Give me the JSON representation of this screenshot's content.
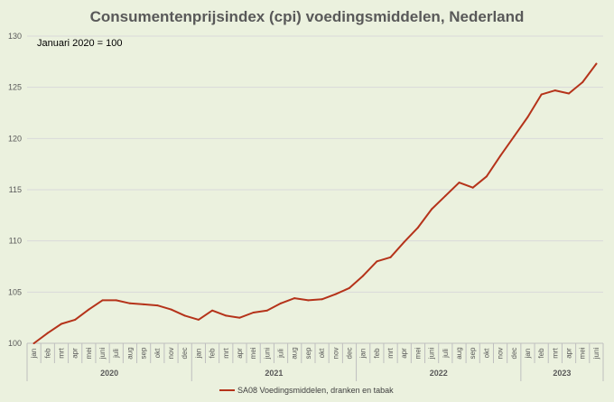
{
  "chart_data": {
    "type": "line",
    "title": "Consumentenprijsindex (cpi) voedingsmiddelen, Nederland",
    "annotation": "Januari 2020 = 100",
    "xlabel": "",
    "ylabel": "",
    "ylim": [
      100,
      130
    ],
    "y_ticks": [
      "100",
      "105",
      "110",
      "115",
      "120",
      "125",
      "130"
    ],
    "grid": true,
    "legend": "bottom",
    "line_color": "#b5331a",
    "months": [
      "jan",
      "feb",
      "mrt",
      "apr",
      "mei",
      "juni",
      "juli",
      "aug",
      "sep",
      "okt",
      "nov",
      "dec",
      "jan",
      "feb",
      "mrt",
      "apr",
      "mei",
      "juni",
      "juli",
      "aug",
      "sep",
      "okt",
      "nov",
      "dec",
      "jan",
      "feb",
      "mrt",
      "apr",
      "mei",
      "juni",
      "juli",
      "aug",
      "sep",
      "okt",
      "nov",
      "dec",
      "jan",
      "feb",
      "mrt",
      "apr",
      "mei",
      "juni"
    ],
    "years": [
      {
        "label": "2020",
        "start": 0,
        "count": 12
      },
      {
        "label": "2021",
        "start": 12,
        "count": 12
      },
      {
        "label": "2022",
        "start": 24,
        "count": 12
      },
      {
        "label": "2023",
        "start": 36,
        "count": 6
      }
    ],
    "series": [
      {
        "name": "SA08 Voedingsmiddelen, dranken en tabak",
        "values": [
          100.0,
          101.0,
          101.9,
          102.3,
          103.3,
          104.2,
          104.2,
          103.9,
          103.8,
          103.7,
          103.3,
          102.7,
          102.3,
          103.2,
          102.7,
          102.5,
          103.0,
          103.2,
          103.9,
          104.4,
          104.2,
          104.3,
          104.8,
          105.4,
          106.6,
          108.0,
          108.4,
          109.9,
          111.3,
          113.1,
          114.4,
          115.7,
          115.2,
          116.3,
          118.3,
          120.2,
          122.1,
          124.3,
          124.7,
          124.4,
          125.5,
          127.3
        ]
      }
    ]
  }
}
